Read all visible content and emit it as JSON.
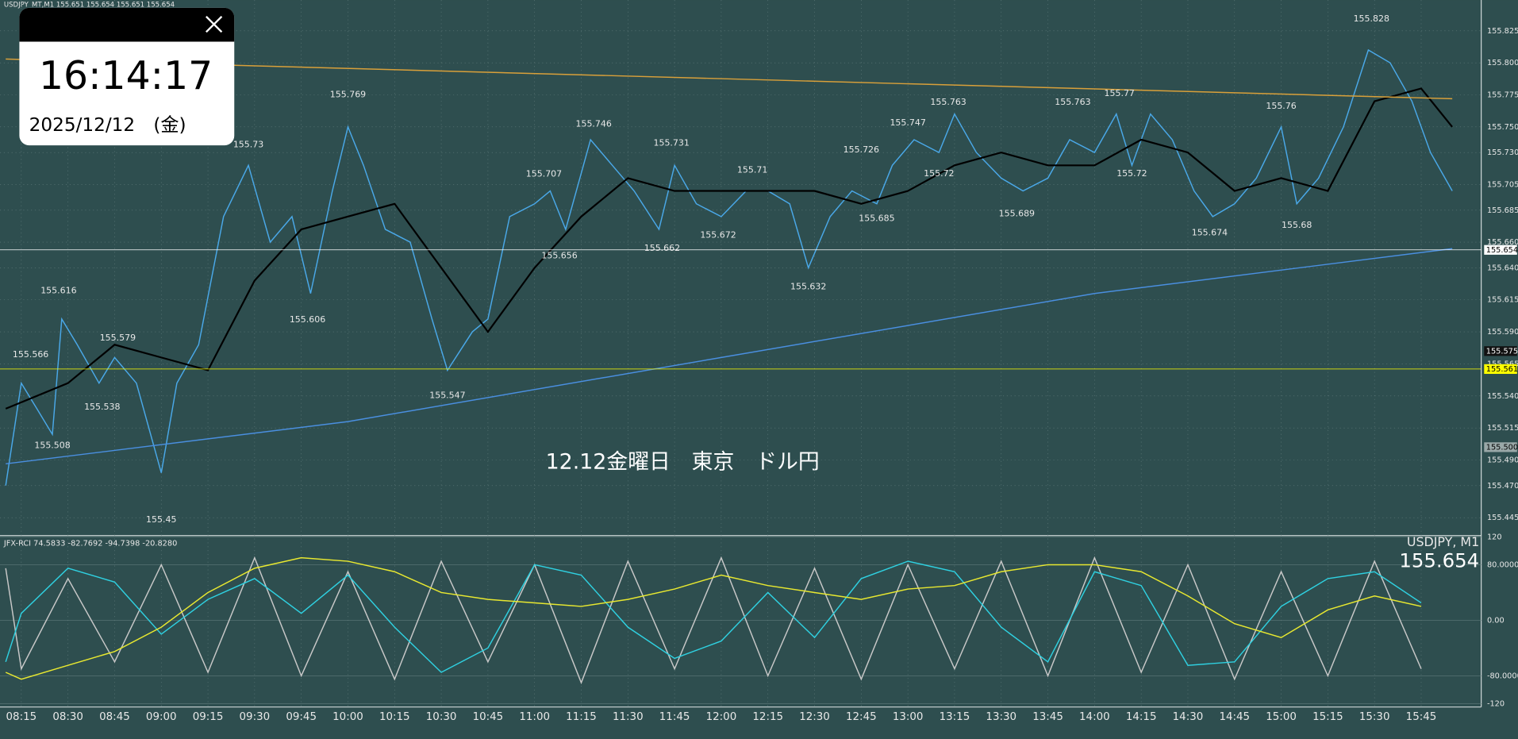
{
  "header": {
    "symbol_line": "USDJPY_MT,M1  155.651 155.654 155.651 155.654"
  },
  "clock": {
    "time": "16:14:17",
    "date": "2025/12/12　(金)"
  },
  "caption": "12.12金曜日　東京　ドル円",
  "chart_data": [
    {
      "type": "line",
      "name": "price",
      "ylim": [
        155.431,
        155.849
      ],
      "yticks": [
        155.825,
        {
          "value": 155.8,
          "label": "155.800"
        },
        155.775,
        {
          "value": 155.75,
          "label": "155.750"
        },
        {
          "value": 155.73,
          "label": "155.730"
        },
        155.705,
        155.685,
        {
          "value": 155.66,
          "label": "155.660"
        },
        {
          "value": 155.64,
          "label": "155.640"
        },
        155.615,
        {
          "value": 155.59,
          "label": "155.590"
        },
        155.565,
        {
          "value": 155.54,
          "label": "155.540"
        },
        155.515,
        {
          "value": 155.49,
          "label": "155.490"
        },
        {
          "value": 155.47,
          "label": "155.470"
        },
        155.445
      ],
      "xticks": [
        "08:15",
        "08:30",
        "08:45",
        "09:00",
        "09:15",
        "09:30",
        "09:45",
        "10:00",
        "10:15",
        "10:30",
        "10:45",
        "11:00",
        "11:15",
        "11:30",
        "11:45",
        "12:00",
        "12:15",
        "12:30",
        "12:45",
        "13:00",
        "13:15",
        "13:30",
        "13:45",
        "14:00",
        "14:15",
        "14:30",
        "14:45",
        "15:00",
        "15:15",
        "15:30",
        "15:45"
      ],
      "series": [
        {
          "name": "close",
          "color": "#4aa8e8",
          "x": [
            "08:10",
            "08:15",
            "08:20",
            "08:25",
            "08:28",
            "08:33",
            "08:40",
            "08:45",
            "08:52",
            "09:00",
            "09:05",
            "09:12",
            "09:20",
            "09:28",
            "09:35",
            "09:42",
            "09:48",
            "09:55",
            "10:00",
            "10:05",
            "10:12",
            "10:20",
            "10:27",
            "10:32",
            "10:40",
            "10:45",
            "10:52",
            "11:00",
            "11:05",
            "11:10",
            "11:18",
            "11:25",
            "11:32",
            "11:40",
            "11:45",
            "11:52",
            "12:00",
            "12:08",
            "12:15",
            "12:22",
            "12:28",
            "12:35",
            "12:42",
            "12:50",
            "12:55",
            "13:02",
            "13:10",
            "13:15",
            "13:22",
            "13:30",
            "13:37",
            "13:45",
            "13:52",
            "14:00",
            "14:07",
            "14:12",
            "14:18",
            "14:25",
            "14:32",
            "14:38",
            "14:45",
            "14:52",
            "15:00",
            "15:05",
            "15:12",
            "15:20",
            "15:28",
            "15:35",
            "15:42",
            "15:48",
            "15:55"
          ],
          "values": [
            155.47,
            155.55,
            155.53,
            155.51,
            155.6,
            155.58,
            155.55,
            155.57,
            155.55,
            155.48,
            155.55,
            155.58,
            155.68,
            155.72,
            155.66,
            155.68,
            155.62,
            155.7,
            155.75,
            155.72,
            155.67,
            155.66,
            155.6,
            155.56,
            155.59,
            155.6,
            155.68,
            155.69,
            155.7,
            155.67,
            155.74,
            155.72,
            155.7,
            155.67,
            155.72,
            155.69,
            155.68,
            155.7,
            155.7,
            155.69,
            155.64,
            155.68,
            155.7,
            155.69,
            155.72,
            155.74,
            155.73,
            155.76,
            155.73,
            155.71,
            155.7,
            155.71,
            155.74,
            155.73,
            155.76,
            155.72,
            155.76,
            155.74,
            155.7,
            155.68,
            155.69,
            155.71,
            155.75,
            155.69,
            155.71,
            155.75,
            155.81,
            155.8,
            155.77,
            155.73,
            155.7
          ]
        },
        {
          "name": "ma",
          "color": "#000000",
          "x": [
            "08:10",
            "08:30",
            "08:45",
            "09:00",
            "09:15",
            "09:30",
            "09:45",
            "10:00",
            "10:15",
            "10:30",
            "10:45",
            "11:00",
            "11:15",
            "11:30",
            "11:45",
            "12:00",
            "12:15",
            "12:30",
            "12:45",
            "13:00",
            "13:15",
            "13:30",
            "13:45",
            "14:00",
            "14:15",
            "14:30",
            "14:45",
            "15:00",
            "15:15",
            "15:30",
            "15:45",
            "15:55"
          ],
          "values": [
            155.53,
            155.55,
            155.58,
            155.57,
            155.56,
            155.63,
            155.67,
            155.68,
            155.69,
            155.64,
            155.59,
            155.64,
            155.68,
            155.71,
            155.7,
            155.7,
            155.7,
            155.7,
            155.69,
            155.7,
            155.72,
            155.73,
            155.72,
            155.72,
            155.74,
            155.73,
            155.7,
            155.71,
            155.7,
            155.77,
            155.78,
            155.75
          ]
        },
        {
          "name": "long-ma",
          "color": "#4a8fe0",
          "x": [
            "08:10",
            "10:00",
            "12:00",
            "14:00",
            "15:55"
          ],
          "values": [
            155.487,
            155.52,
            155.57,
            155.62,
            155.655
          ]
        },
        {
          "name": "trend",
          "color": "#d9a03a",
          "x": [
            "08:10",
            "15:55"
          ],
          "values": [
            155.803,
            155.772
          ]
        }
      ],
      "highs": [
        {
          "time": "08:18",
          "value": 155.566
        },
        {
          "time": "08:27",
          "value": 155.616
        },
        {
          "time": "08:46",
          "value": 155.579
        },
        {
          "time": "09:28",
          "value": 155.73
        },
        {
          "time": "10:00",
          "value": 155.769
        },
        {
          "time": "11:03",
          "value": 155.707
        },
        {
          "time": "11:19",
          "value": 155.746
        },
        {
          "time": "11:44",
          "value": 155.731
        },
        {
          "time": "12:10",
          "value": 155.71
        },
        {
          "time": "12:45",
          "value": 155.726
        },
        {
          "time": "13:00",
          "value": 155.747
        },
        {
          "time": "13:13",
          "value": 155.763
        },
        {
          "time": "13:53",
          "value": 155.763
        },
        {
          "time": "14:08",
          "value": 155.77
        },
        {
          "time": "15:00",
          "value": 155.76
        },
        {
          "time": "15:29",
          "value": 155.828
        }
      ],
      "lows": [
        {
          "time": "08:25",
          "value": 155.508
        },
        {
          "time": "08:41",
          "value": 155.538
        },
        {
          "time": "09:00",
          "value": 155.45
        },
        {
          "time": "09:47",
          "value": 155.606
        },
        {
          "time": "10:32",
          "value": 155.547
        },
        {
          "time": "11:08",
          "value": 155.656
        },
        {
          "time": "11:41",
          "value": 155.662
        },
        {
          "time": "11:59",
          "value": 155.672
        },
        {
          "time": "12:28",
          "value": 155.632
        },
        {
          "time": "12:50",
          "value": 155.685
        },
        {
          "time": "13:10",
          "value": 155.72
        },
        {
          "time": "13:35",
          "value": 155.689
        },
        {
          "time": "14:12",
          "value": 155.72
        },
        {
          "time": "14:37",
          "value": 155.674
        },
        {
          "time": "15:05",
          "value": 155.68
        }
      ],
      "price_tags": [
        {
          "value": 155.654,
          "color": "#ffffff"
        },
        {
          "value": 155.575,
          "color": "#111111"
        },
        {
          "value": 155.561,
          "color": "#ffff00"
        },
        {
          "value": 155.5,
          "label": "155.500",
          "color": "#9aa8a8"
        }
      ]
    },
    {
      "type": "line",
      "name": "rci",
      "title": "JFX-RCI 74.5833 -82.7692 -94.7398 -20.8280",
      "corner_title": "USDJPY, M1",
      "corner_price": "155.654",
      "ylim": [
        -125,
        122
      ],
      "yticks": [
        120,
        {
          "value": 80,
          "label": "80.0000"
        },
        {
          "value": 0,
          "label": "0.00"
        },
        {
          "value": -80,
          "label": "-80.0000"
        },
        -120
      ],
      "x": [
        "08:10",
        "08:15",
        "08:30",
        "08:45",
        "09:00",
        "09:15",
        "09:30",
        "09:45",
        "10:00",
        "10:15",
        "10:30",
        "10:45",
        "11:00",
        "11:15",
        "11:30",
        "11:45",
        "12:00",
        "12:15",
        "12:30",
        "12:45",
        "13:00",
        "13:15",
        "13:30",
        "13:45",
        "14:00",
        "14:15",
        "14:30",
        "14:45",
        "15:00",
        "15:15",
        "15:30",
        "15:45"
      ],
      "series": [
        {
          "name": "fast",
          "color": "#c8c8c8",
          "values": [
            75,
            -70,
            60,
            -60,
            80,
            -75,
            90,
            -80,
            70,
            -85,
            85,
            -60,
            80,
            -90,
            85,
            -70,
            90,
            -80,
            75,
            -85,
            80,
            -70,
            85,
            -80,
            90,
            -75,
            80,
            -85,
            70,
            -80,
            85,
            -70
          ]
        },
        {
          "name": "mid",
          "color": "#2fd0e0",
          "values": [
            -60,
            10,
            75,
            55,
            -20,
            30,
            60,
            10,
            65,
            -10,
            -75,
            -40,
            80,
            65,
            -10,
            -55,
            -30,
            40,
            -25,
            60,
            85,
            70,
            -10,
            -60,
            70,
            50,
            -65,
            -60,
            20,
            60,
            70,
            25
          ]
        },
        {
          "name": "long",
          "color": "#e8e830",
          "values": [
            -75,
            -85,
            -65,
            -45,
            -10,
            40,
            75,
            90,
            85,
            70,
            40,
            30,
            25,
            20,
            30,
            45,
            65,
            50,
            40,
            30,
            45,
            50,
            70,
            80,
            80,
            70,
            35,
            -5,
            -25,
            15,
            35,
            20
          ]
        }
      ]
    }
  ]
}
